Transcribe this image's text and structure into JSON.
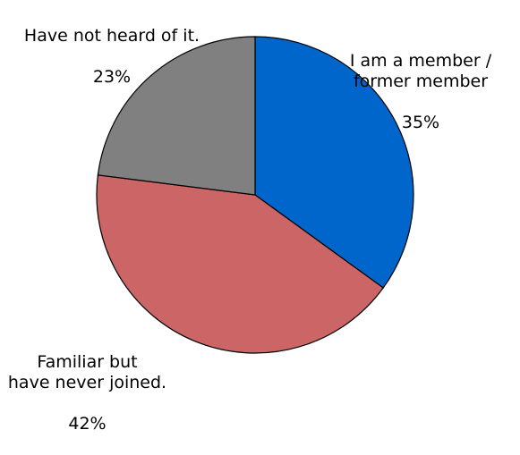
{
  "chart_data": {
    "type": "pie",
    "categories": [
      "I am a member /\nformer member",
      "Familiar but\nhave never joined.",
      "Have not heard of it."
    ],
    "values": [
      35,
      42,
      23
    ],
    "value_labels": [
      "35%",
      "42%",
      "23%"
    ],
    "colors": [
      "#0066cc",
      "#cc6666",
      "#808080"
    ]
  }
}
